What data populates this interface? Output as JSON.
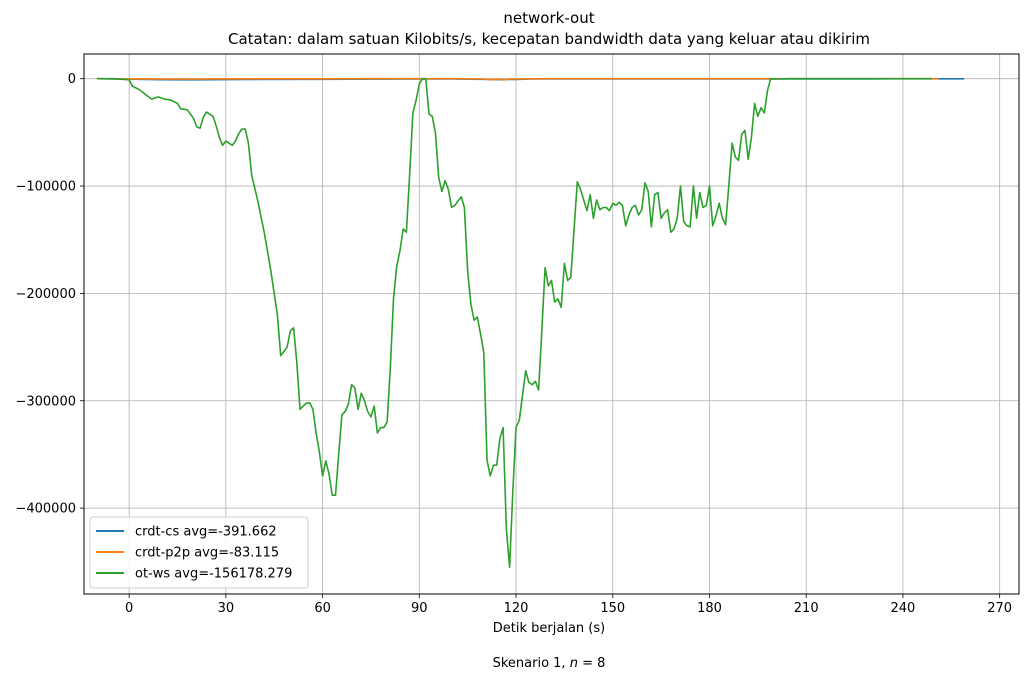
{
  "chart_data": {
    "type": "line",
    "title": "network-out",
    "subtitle": "Catatan: dalam satuan Kilobits/s, kecepatan bandwidth data yang keluar atau dikirim",
    "xlabel": "Detik berjalan (s)",
    "ylabel": "",
    "caption": "Skenario 1, n = 8",
    "xlim": [
      -14,
      276
    ],
    "ylim": [
      -480000,
      23000
    ],
    "xticks": [
      0,
      30,
      60,
      90,
      120,
      150,
      180,
      210,
      240,
      270
    ],
    "xtick_labels": [
      "0",
      "30",
      "60",
      "90",
      "120",
      "150",
      "180",
      "210",
      "240",
      "270"
    ],
    "yticks": [
      0,
      -100000,
      -200000,
      -300000,
      -400000
    ],
    "ytick_labels": [
      "0",
      "−100000",
      "−200000",
      "−300000",
      "−400000"
    ],
    "grid": true,
    "legend_position": "lower-left",
    "series": [
      {
        "name": "crdt-cs avg=-391.662",
        "color": "#1f77b4",
        "points": [
          [
            -10,
            0
          ],
          [
            0,
            -500
          ],
          [
            10,
            -900
          ],
          [
            20,
            -1000
          ],
          [
            30,
            -800
          ],
          [
            40,
            -700
          ],
          [
            60,
            -600
          ],
          [
            80,
            -400
          ],
          [
            100,
            -300
          ],
          [
            115,
            -800
          ],
          [
            120,
            -700
          ],
          [
            125,
            -300
          ],
          [
            150,
            -300
          ],
          [
            180,
            -300
          ],
          [
            200,
            -200
          ],
          [
            230,
            -200
          ],
          [
            250,
            -100
          ],
          [
            259,
            -100
          ]
        ]
      },
      {
        "name": "crdt-p2p avg=-83.115",
        "color": "#ff7f0e",
        "points": [
          [
            -10,
            0
          ],
          [
            0,
            -200
          ],
          [
            20,
            -300
          ],
          [
            40,
            -100
          ],
          [
            60,
            -100
          ],
          [
            80,
            0
          ],
          [
            100,
            -50
          ],
          [
            110,
            -300
          ],
          [
            112,
            -900
          ],
          [
            115,
            -400
          ],
          [
            116,
            -1200
          ],
          [
            118,
            -300
          ],
          [
            130,
            -50
          ],
          [
            160,
            0
          ],
          [
            200,
            0
          ],
          [
            230,
            0
          ],
          [
            251,
            0
          ]
        ]
      },
      {
        "name": "ot-ws avg=-156178.279",
        "color": "#2ca02c",
        "points": [
          [
            -10,
            0
          ],
          [
            -5,
            0
          ],
          [
            0,
            -1000
          ],
          [
            1,
            -7000
          ],
          [
            3,
            -10000
          ],
          [
            4,
            -12000
          ],
          [
            6,
            -17000
          ],
          [
            7,
            -19000
          ],
          [
            9,
            -17000
          ],
          [
            11,
            -19000
          ],
          [
            13,
            -20000
          ],
          [
            15,
            -23000
          ],
          [
            16,
            -28000
          ],
          [
            18,
            -29000
          ],
          [
            20,
            -37000
          ],
          [
            21,
            -45000
          ],
          [
            22,
            -46000
          ],
          [
            23,
            -36000
          ],
          [
            24,
            -31000
          ],
          [
            26,
            -35000
          ],
          [
            27,
            -44000
          ],
          [
            28,
            -55000
          ],
          [
            29,
            -62000
          ],
          [
            30,
            -58000
          ],
          [
            32,
            -62000
          ],
          [
            33,
            -58000
          ],
          [
            34,
            -51000
          ],
          [
            35,
            -47000
          ],
          [
            36,
            -47000
          ],
          [
            37,
            -60000
          ],
          [
            38,
            -90000
          ],
          [
            40,
            -115000
          ],
          [
            42,
            -145000
          ],
          [
            44,
            -180000
          ],
          [
            46,
            -220000
          ],
          [
            47,
            -258000
          ],
          [
            49,
            -250000
          ],
          [
            50,
            -235000
          ],
          [
            51,
            -232000
          ],
          [
            52,
            -264000
          ],
          [
            53,
            -308000
          ],
          [
            54,
            -305000
          ],
          [
            55,
            -302000
          ],
          [
            56,
            -302000
          ],
          [
            57,
            -308000
          ],
          [
            58,
            -330000
          ],
          [
            59,
            -348000
          ],
          [
            60,
            -370000
          ],
          [
            61,
            -356000
          ],
          [
            62,
            -368000
          ],
          [
            63,
            -388000
          ],
          [
            64,
            -388000
          ],
          [
            65,
            -350000
          ],
          [
            66,
            -313000
          ],
          [
            67,
            -310000
          ],
          [
            68,
            -303000
          ],
          [
            69,
            -285000
          ],
          [
            70,
            -288000
          ],
          [
            71,
            -308000
          ],
          [
            72,
            -293000
          ],
          [
            73,
            -300000
          ],
          [
            74,
            -310000
          ],
          [
            75,
            -315000
          ],
          [
            76,
            -305000
          ],
          [
            77,
            -330000
          ],
          [
            78,
            -325000
          ],
          [
            79,
            -325000
          ],
          [
            80,
            -320000
          ],
          [
            81,
            -270000
          ],
          [
            82,
            -205000
          ],
          [
            83,
            -175000
          ],
          [
            84,
            -160000
          ],
          [
            85,
            -140000
          ],
          [
            86,
            -143000
          ],
          [
            87,
            -90000
          ],
          [
            88,
            -32000
          ],
          [
            89,
            -20000
          ],
          [
            90,
            -5000
          ],
          [
            91,
            0
          ],
          [
            92,
            0
          ],
          [
            93,
            -33000
          ],
          [
            94,
            -35000
          ],
          [
            95,
            -50000
          ],
          [
            96,
            -92000
          ],
          [
            97,
            -105000
          ],
          [
            98,
            -95000
          ],
          [
            99,
            -103000
          ],
          [
            100,
            -120000
          ],
          [
            101,
            -118000
          ],
          [
            103,
            -110000
          ],
          [
            104,
            -120000
          ],
          [
            105,
            -180000
          ],
          [
            106,
            -210000
          ],
          [
            107,
            -225000
          ],
          [
            108,
            -222000
          ],
          [
            109,
            -238000
          ],
          [
            110,
            -255000
          ],
          [
            111,
            -355000
          ],
          [
            112,
            -370000
          ],
          [
            113,
            -360000
          ],
          [
            114,
            -360000
          ],
          [
            115,
            -335000
          ],
          [
            116,
            -325000
          ],
          [
            117,
            -420000
          ],
          [
            118,
            -455000
          ],
          [
            119,
            -385000
          ],
          [
            120,
            -325000
          ],
          [
            121,
            -318000
          ],
          [
            122,
            -295000
          ],
          [
            123,
            -272000
          ],
          [
            124,
            -283000
          ],
          [
            125,
            -285000
          ],
          [
            126,
            -282000
          ],
          [
            127,
            -290000
          ],
          [
            128,
            -235000
          ],
          [
            129,
            -176000
          ],
          [
            130,
            -193000
          ],
          [
            131,
            -188000
          ],
          [
            132,
            -208000
          ],
          [
            133,
            -205000
          ],
          [
            134,
            -213000
          ],
          [
            135,
            -172000
          ],
          [
            136,
            -188000
          ],
          [
            137,
            -185000
          ],
          [
            138,
            -140000
          ],
          [
            139,
            -96000
          ],
          [
            140,
            -103000
          ],
          [
            141,
            -113000
          ],
          [
            142,
            -123000
          ],
          [
            143,
            -108000
          ],
          [
            144,
            -130000
          ],
          [
            145,
            -113000
          ],
          [
            146,
            -122000
          ],
          [
            147,
            -120000
          ],
          [
            148,
            -120000
          ],
          [
            149,
            -123000
          ],
          [
            150,
            -116000
          ],
          [
            151,
            -118000
          ],
          [
            152,
            -115000
          ],
          [
            153,
            -118000
          ],
          [
            154,
            -137000
          ],
          [
            155,
            -127000
          ],
          [
            156,
            -120000
          ],
          [
            157,
            -118000
          ],
          [
            158,
            -127000
          ],
          [
            159,
            -122000
          ],
          [
            160,
            -97000
          ],
          [
            161,
            -105000
          ],
          [
            162,
            -138000
          ],
          [
            163,
            -108000
          ],
          [
            164,
            -106000
          ],
          [
            165,
            -130000
          ],
          [
            166,
            -125000
          ],
          [
            167,
            -122000
          ],
          [
            168,
            -143000
          ],
          [
            169,
            -140000
          ],
          [
            170,
            -130000
          ],
          [
            171,
            -100000
          ],
          [
            172,
            -133000
          ],
          [
            173,
            -137000
          ],
          [
            174,
            -138000
          ],
          [
            175,
            -100000
          ],
          [
            176,
            -130000
          ],
          [
            177,
            -106000
          ],
          [
            178,
            -120000
          ],
          [
            179,
            -118000
          ],
          [
            180,
            -100000
          ],
          [
            181,
            -137000
          ],
          [
            182,
            -128000
          ],
          [
            183,
            -116000
          ],
          [
            184,
            -130000
          ],
          [
            185,
            -136000
          ],
          [
            186,
            -100000
          ],
          [
            187,
            -60000
          ],
          [
            188,
            -73000
          ],
          [
            189,
            -76000
          ],
          [
            190,
            -52000
          ],
          [
            191,
            -48000
          ],
          [
            192,
            -75000
          ],
          [
            193,
            -55000
          ],
          [
            194,
            -23000
          ],
          [
            195,
            -35000
          ],
          [
            196,
            -27000
          ],
          [
            197,
            -32000
          ],
          [
            198,
            -11000
          ],
          [
            199,
            0
          ],
          [
            200,
            -300
          ],
          [
            205,
            0
          ],
          [
            210,
            0
          ],
          [
            220,
            0
          ],
          [
            230,
            0
          ],
          [
            240,
            0
          ],
          [
            249,
            0
          ]
        ]
      }
    ]
  }
}
